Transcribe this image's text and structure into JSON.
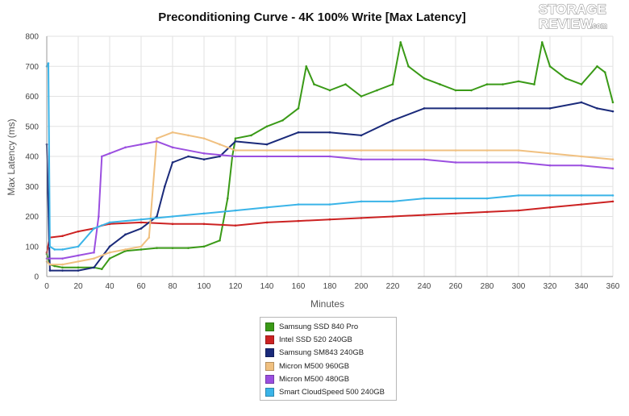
{
  "logo": {
    "line1": "STORAGE",
    "line2": "REVIEW",
    "suffix": ".com"
  },
  "chart_data": {
    "type": "line",
    "title": "Preconditioning Curve - 4K 100% Write [Max Latency]",
    "xlabel": "Minutes",
    "ylabel": "Max Latency (ms)",
    "xlim": [
      0,
      360
    ],
    "ylim": [
      0,
      800
    ],
    "x_ticks": [
      0,
      20,
      40,
      60,
      80,
      100,
      120,
      140,
      160,
      180,
      200,
      220,
      240,
      260,
      280,
      300,
      320,
      340,
      360
    ],
    "y_ticks": [
      0,
      100,
      200,
      300,
      400,
      500,
      600,
      700,
      800
    ],
    "grid": true,
    "legend_position": "bottom-center",
    "series": [
      {
        "name": "Samsung SSD 840 Pro",
        "color": "#3a9a17",
        "x": [
          0,
          2,
          5,
          10,
          20,
          30,
          35,
          40,
          50,
          60,
          70,
          80,
          90,
          100,
          110,
          115,
          118,
          120,
          130,
          140,
          150,
          160,
          165,
          170,
          180,
          190,
          200,
          210,
          220,
          225,
          230,
          240,
          250,
          260,
          270,
          280,
          290,
          300,
          310,
          315,
          320,
          330,
          340,
          350,
          355,
          360
        ],
        "y": [
          75,
          40,
          35,
          30,
          30,
          30,
          25,
          60,
          85,
          90,
          95,
          95,
          95,
          100,
          120,
          260,
          400,
          460,
          470,
          500,
          520,
          560,
          700,
          640,
          620,
          640,
          600,
          620,
          640,
          780,
          700,
          660,
          640,
          620,
          620,
          640,
          640,
          650,
          640,
          780,
          700,
          660,
          640,
          700,
          680,
          580
        ]
      },
      {
        "name": "Intel SSD 520 240GB",
        "color": "#cc2222",
        "x": [
          0,
          2,
          10,
          20,
          30,
          35,
          40,
          60,
          80,
          100,
          120,
          140,
          160,
          180,
          200,
          220,
          240,
          260,
          280,
          300,
          320,
          340,
          360
        ],
        "y": [
          80,
          130,
          135,
          150,
          160,
          170,
          175,
          180,
          175,
          175,
          170,
          180,
          185,
          190,
          195,
          200,
          205,
          210,
          215,
          220,
          230,
          240,
          250
        ]
      },
      {
        "name": "Samsung SM843 240GB",
        "color": "#1a2a7a",
        "x": [
          0,
          2,
          10,
          20,
          30,
          40,
          50,
          60,
          70,
          75,
          80,
          90,
          100,
          110,
          120,
          140,
          160,
          180,
          200,
          220,
          240,
          260,
          280,
          300,
          320,
          340,
          350,
          360
        ],
        "y": [
          440,
          20,
          20,
          20,
          30,
          100,
          140,
          160,
          200,
          300,
          380,
          400,
          390,
          400,
          450,
          440,
          480,
          480,
          470,
          520,
          560,
          560,
          560,
          560,
          560,
          580,
          560,
          550
        ]
      },
      {
        "name": "Micron M500 960GB",
        "color": "#f0c080",
        "x": [
          0,
          2,
          10,
          20,
          30,
          40,
          50,
          60,
          65,
          70,
          80,
          90,
          100,
          110,
          120,
          140,
          160,
          180,
          200,
          220,
          240,
          260,
          280,
          300,
          320,
          340,
          360
        ],
        "y": [
          50,
          40,
          40,
          50,
          60,
          80,
          90,
          100,
          130,
          460,
          480,
          470,
          460,
          440,
          420,
          420,
          420,
          420,
          420,
          420,
          420,
          420,
          420,
          420,
          410,
          400,
          390
        ]
      },
      {
        "name": "Micron M500 480GB",
        "color": "#9b4fe0",
        "x": [
          0,
          2,
          10,
          20,
          30,
          33,
          35,
          40,
          50,
          60,
          70,
          80,
          100,
          120,
          140,
          160,
          180,
          200,
          220,
          240,
          260,
          280,
          300,
          320,
          340,
          360
        ],
        "y": [
          60,
          60,
          60,
          70,
          80,
          200,
          400,
          410,
          430,
          440,
          450,
          430,
          410,
          400,
          400,
          400,
          400,
          390,
          390,
          390,
          380,
          380,
          380,
          370,
          370,
          360
        ]
      },
      {
        "name": "Smart CloudSpeed 500 240GB",
        "color": "#3ab4e8",
        "x": [
          0,
          1,
          2,
          5,
          10,
          20,
          30,
          40,
          60,
          80,
          100,
          120,
          140,
          160,
          180,
          200,
          220,
          240,
          260,
          280,
          300,
          320,
          340,
          360
        ],
        "y": [
          700,
          710,
          100,
          90,
          90,
          100,
          160,
          180,
          190,
          200,
          210,
          220,
          230,
          240,
          240,
          250,
          250,
          260,
          260,
          260,
          270,
          270,
          270,
          270
        ]
      }
    ]
  }
}
